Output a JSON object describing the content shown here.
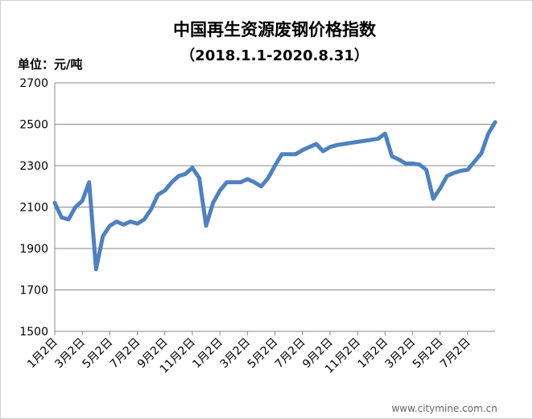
{
  "chart_data": {
    "type": "line",
    "title": "中国再生资源废钢价格指数",
    "subtitle": "（2018.1.1-2020.8.31）",
    "y_label": "单位：元/吨",
    "watermark": "www.citymine.com.cn",
    "categories": [
      "1月2日",
      null,
      null,
      null,
      "3月2日",
      null,
      null,
      null,
      "5月2日",
      null,
      null,
      null,
      "7月2日",
      null,
      null,
      null,
      "9月2日",
      null,
      null,
      null,
      "11月2日",
      null,
      null,
      null,
      "1月2日",
      null,
      null,
      null,
      "3月2日",
      null,
      null,
      null,
      "5月2日",
      null,
      null,
      null,
      "7月2日",
      null,
      null,
      null,
      "9月2日",
      null,
      null,
      null,
      "11月2日",
      null,
      null,
      null,
      "1月2日",
      null,
      null,
      null,
      "3月2日",
      null,
      null,
      null,
      "5月2日",
      null,
      null,
      null,
      "7月2日",
      null,
      null,
      null,
      null
    ],
    "values": [
      2120,
      2050,
      2040,
      2100,
      2130,
      2220,
      1800,
      1960,
      2010,
      2030,
      2015,
      2030,
      2020,
      2040,
      2090,
      2160,
      2180,
      2220,
      2250,
      2260,
      2290,
      2240,
      2010,
      2120,
      2180,
      2220,
      2220,
      2220,
      2235,
      2220,
      2200,
      2240,
      2300,
      2355,
      2355,
      2355,
      2375,
      2390,
      2405,
      2370,
      2390,
      2400,
      2405,
      2410,
      2415,
      2420,
      2425,
      2430,
      2455,
      2345,
      2330,
      2310,
      2310,
      2305,
      2280,
      2140,
      2190,
      2250,
      2265,
      2275,
      2280,
      2320,
      2360,
      2455,
      2510
    ],
    "color": "#4f81bd",
    "ylim": [
      1500,
      2700
    ],
    "yticks": [
      1500,
      1700,
      1900,
      2100,
      2300,
      2500,
      2700
    ],
    "grid": true
  }
}
